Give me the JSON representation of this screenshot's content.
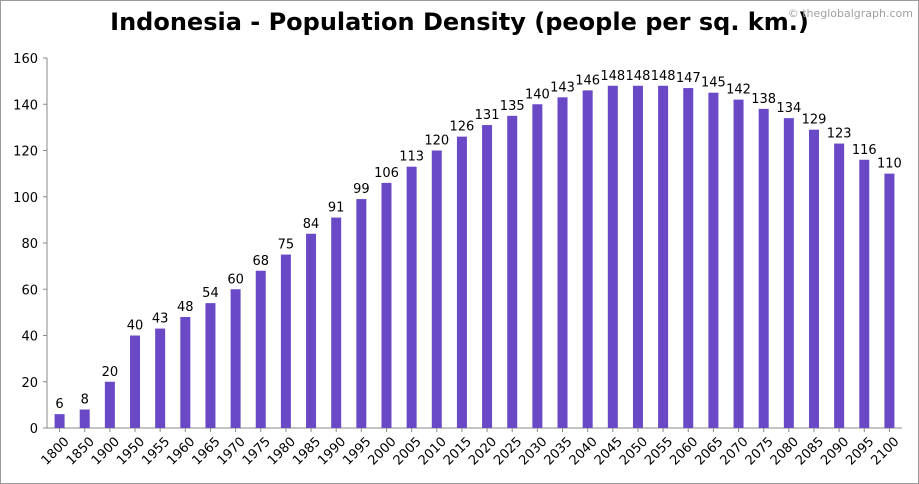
{
  "header": {
    "title": "Indonesia - Population Density (people per sq. km.)",
    "watermark": "© theglobalgraph.com"
  },
  "colors": {
    "bar": "#6a49c6",
    "axis": "#8a8a8a",
    "text": "#000000"
  },
  "chart_data": {
    "type": "bar",
    "title": "Indonesia - Population Density (people per sq. km.)",
    "xlabel": "",
    "ylabel": "",
    "ylim": [
      0,
      160
    ],
    "yticks": [
      0,
      20,
      40,
      60,
      80,
      100,
      120,
      140,
      160
    ],
    "grid": false,
    "legend": "none",
    "categories": [
      "1800",
      "1850",
      "1900",
      "1950",
      "1955",
      "1960",
      "1965",
      "1970",
      "1975",
      "1980",
      "1985",
      "1990",
      "1995",
      "2000",
      "2005",
      "2010",
      "2015",
      "2020",
      "2025",
      "2030",
      "2035",
      "2040",
      "2045",
      "2050",
      "2055",
      "2060",
      "2065",
      "2070",
      "2075",
      "2080",
      "2085",
      "2090",
      "2095",
      "2100"
    ],
    "values": [
      6,
      8,
      20,
      40,
      43,
      48,
      54,
      60,
      68,
      75,
      84,
      91,
      99,
      106,
      113,
      120,
      126,
      131,
      135,
      140,
      143,
      146,
      148,
      148,
      148,
      147,
      145,
      142,
      138,
      134,
      129,
      123,
      116,
      110
    ]
  }
}
